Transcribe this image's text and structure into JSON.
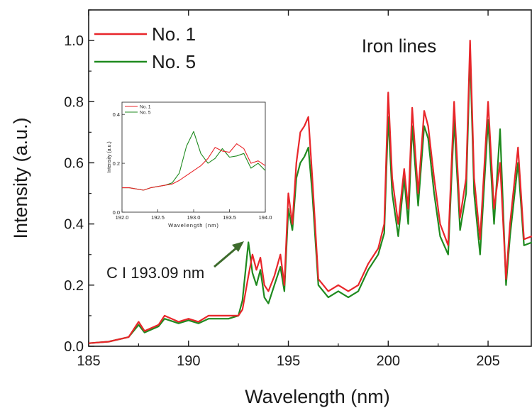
{
  "chart_data": [
    {
      "type": "line",
      "xlabel": "Wavelength (nm)",
      "ylabel": "Intensity (a.u.)",
      "xlim": [
        185,
        207.2
      ],
      "ylim": [
        0,
        1.1
      ],
      "xticks": [
        185,
        190,
        195,
        200,
        205
      ],
      "xtick_labels": [
        "185",
        "190",
        "195",
        "200",
        "205"
      ],
      "yticks": [
        0,
        0.2,
        0.4,
        0.6,
        0.8,
        1.0
      ],
      "ytick_labels": [
        "0.0",
        "0.2",
        "0.4",
        "0.6",
        "0.8",
        "1.0"
      ],
      "legend_position": "top-left",
      "grid": false,
      "annotations": [
        {
          "text": "Iron lines",
          "x": 200.8,
          "y": 0.99
        },
        {
          "text": "C I 193.09 nm",
          "x": 186.0,
          "y": 0.235,
          "arrow_to": [
            193.0,
            0.33
          ]
        }
      ],
      "series": [
        {
          "name": "No. 1",
          "color": "#e8262a",
          "x": [
            185.0,
            186.0,
            187.0,
            187.5,
            187.8,
            188.5,
            188.8,
            189.5,
            190.0,
            190.5,
            191.0,
            191.5,
            192.0,
            192.5,
            192.7,
            193.0,
            193.2,
            193.4,
            193.6,
            193.8,
            194.0,
            194.3,
            194.6,
            194.8,
            195.0,
            195.2,
            195.4,
            195.6,
            195.8,
            196.0,
            196.2,
            196.5,
            197.0,
            197.5,
            198.0,
            198.5,
            199.0,
            199.5,
            199.8,
            200.0,
            200.2,
            200.5,
            200.8,
            201.0,
            201.2,
            201.5,
            201.8,
            202.0,
            202.3,
            202.6,
            203.0,
            203.3,
            203.6,
            203.9,
            204.1,
            204.3,
            204.6,
            205.0,
            205.3,
            205.6,
            205.9,
            206.1,
            206.5,
            206.8,
            207.2
          ],
          "values": [
            0.01,
            0.015,
            0.03,
            0.08,
            0.05,
            0.07,
            0.1,
            0.08,
            0.09,
            0.08,
            0.1,
            0.1,
            0.1,
            0.1,
            0.12,
            0.23,
            0.3,
            0.25,
            0.29,
            0.2,
            0.18,
            0.23,
            0.3,
            0.2,
            0.5,
            0.4,
            0.6,
            0.7,
            0.72,
            0.75,
            0.55,
            0.22,
            0.18,
            0.2,
            0.18,
            0.2,
            0.27,
            0.32,
            0.4,
            0.83,
            0.55,
            0.4,
            0.58,
            0.45,
            0.78,
            0.5,
            0.77,
            0.72,
            0.55,
            0.4,
            0.33,
            0.8,
            0.42,
            0.55,
            1.0,
            0.55,
            0.35,
            0.8,
            0.45,
            0.6,
            0.22,
            0.4,
            0.65,
            0.35,
            0.36
          ]
        },
        {
          "name": "No. 5",
          "color": "#1f8a1f",
          "x": [
            185.0,
            186.0,
            187.0,
            187.5,
            187.8,
            188.5,
            188.8,
            189.5,
            190.0,
            190.5,
            191.0,
            191.5,
            192.0,
            192.5,
            192.7,
            193.0,
            193.2,
            193.4,
            193.6,
            193.8,
            194.0,
            194.3,
            194.6,
            194.8,
            195.0,
            195.2,
            195.4,
            195.6,
            195.8,
            196.0,
            196.2,
            196.5,
            197.0,
            197.5,
            198.0,
            198.5,
            199.0,
            199.5,
            199.8,
            200.0,
            200.2,
            200.5,
            200.8,
            201.0,
            201.2,
            201.5,
            201.8,
            202.0,
            202.3,
            202.6,
            203.0,
            203.3,
            203.6,
            203.9,
            204.1,
            204.3,
            204.6,
            205.0,
            205.3,
            205.6,
            205.9,
            206.1,
            206.5,
            206.8,
            207.2
          ],
          "values": [
            0.01,
            0.015,
            0.03,
            0.07,
            0.045,
            0.065,
            0.09,
            0.075,
            0.085,
            0.075,
            0.09,
            0.09,
            0.09,
            0.1,
            0.15,
            0.34,
            0.24,
            0.2,
            0.25,
            0.16,
            0.14,
            0.2,
            0.26,
            0.18,
            0.45,
            0.38,
            0.55,
            0.6,
            0.62,
            0.65,
            0.5,
            0.2,
            0.16,
            0.18,
            0.16,
            0.18,
            0.25,
            0.3,
            0.37,
            0.75,
            0.5,
            0.36,
            0.55,
            0.4,
            0.72,
            0.46,
            0.72,
            0.68,
            0.5,
            0.36,
            0.3,
            0.74,
            0.38,
            0.5,
            0.96,
            0.5,
            0.3,
            0.74,
            0.4,
            0.71,
            0.2,
            0.36,
            0.6,
            0.33,
            0.34
          ]
        }
      ]
    },
    {
      "type": "line",
      "xlabel": "Wavelength (nm)",
      "ylabel": "Intensity (a.u.)",
      "xlim": [
        192.0,
        194.0
      ],
      "ylim": [
        0.0,
        0.45
      ],
      "xticks": [
        192.0,
        192.5,
        193.0,
        193.5,
        194.0
      ],
      "xtick_labels": [
        "192.0",
        "192.5",
        "193.0",
        "193.5",
        "194.0"
      ],
      "yticks": [
        0.0,
        0.2,
        0.4
      ],
      "ytick_labels": [
        "0.0",
        "0.2",
        "0.4"
      ],
      "legend_position": "top-left",
      "grid": false,
      "series": [
        {
          "name": "No. 1",
          "color": "#e8262a",
          "x": [
            192.0,
            192.1,
            192.2,
            192.3,
            192.4,
            192.5,
            192.6,
            192.7,
            192.8,
            192.9,
            193.0,
            193.1,
            193.2,
            193.3,
            193.4,
            193.5,
            193.6,
            193.7,
            193.8,
            193.9,
            194.0
          ],
          "values": [
            0.1,
            0.1,
            0.095,
            0.09,
            0.1,
            0.105,
            0.11,
            0.115,
            0.13,
            0.15,
            0.17,
            0.19,
            0.22,
            0.265,
            0.25,
            0.245,
            0.28,
            0.26,
            0.2,
            0.21,
            0.19
          ]
        },
        {
          "name": "No. 5",
          "color": "#1f8a1f",
          "x": [
            192.0,
            192.1,
            192.2,
            192.3,
            192.4,
            192.5,
            192.6,
            192.7,
            192.8,
            192.9,
            193.0,
            193.1,
            193.2,
            193.3,
            193.4,
            193.5,
            193.6,
            193.7,
            193.8,
            193.9,
            194.0
          ],
          "values": [
            0.1,
            0.1,
            0.095,
            0.09,
            0.1,
            0.105,
            0.11,
            0.12,
            0.16,
            0.27,
            0.33,
            0.24,
            0.2,
            0.22,
            0.26,
            0.225,
            0.23,
            0.24,
            0.18,
            0.2,
            0.17
          ]
        }
      ]
    }
  ]
}
